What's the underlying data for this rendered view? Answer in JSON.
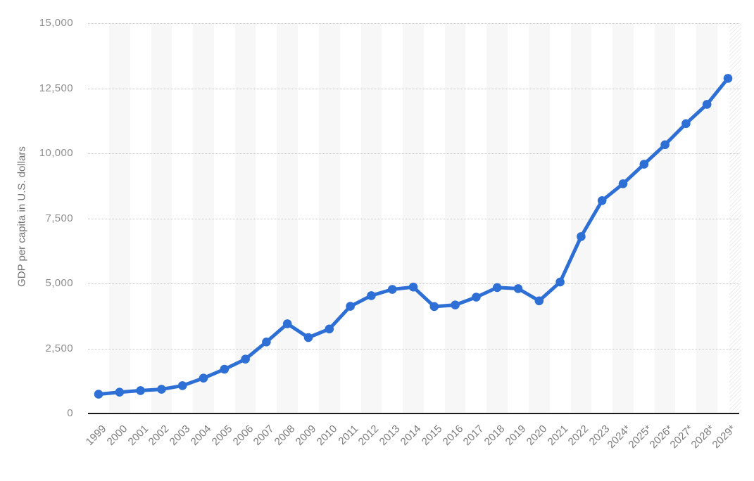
{
  "chart_data": {
    "type": "line",
    "title": "",
    "ylabel": "GDP per capita in U.S. dollars",
    "xlabel": "",
    "categories": [
      "1999",
      "2000",
      "2001",
      "2002",
      "2003",
      "2004",
      "2005",
      "2006",
      "2007",
      "2008",
      "2009",
      "2010",
      "2011",
      "2012",
      "2013",
      "2014",
      "2015",
      "2016",
      "2017",
      "2018",
      "2019",
      "2020",
      "2021",
      "2022",
      "2023",
      "2024*",
      "2025*",
      "2026*",
      "2027*",
      "2028*",
      "2029*"
    ],
    "values": [
      740,
      820,
      880,
      930,
      1070,
      1360,
      1700,
      2090,
      2750,
      3450,
      2920,
      3250,
      4120,
      4530,
      4770,
      4860,
      4110,
      4170,
      4470,
      4840,
      4800,
      4330,
      5050,
      6800,
      8180,
      8830,
      9580,
      10330,
      11140,
      11880,
      12880
    ],
    "ylim": [
      0,
      15000
    ],
    "yticks": [
      0,
      2500,
      5000,
      7500,
      10000,
      12500,
      15000
    ],
    "ytick_labels": [
      "0",
      "2,500",
      "5,000",
      "7,500",
      "10,000",
      "12,500",
      "15,000"
    ],
    "grid": "horizontal-dotted",
    "legend": "none",
    "marker": "circle",
    "colors": {
      "series": "#2e6fd6",
      "band": "#f7f7f7",
      "gridline": "#c9c9c9",
      "baseline": "#1a1a1a",
      "tick_text": "#8e8e8e",
      "xlabel_text": "#7c7c7c",
      "ytitle_text": "#737373"
    }
  }
}
